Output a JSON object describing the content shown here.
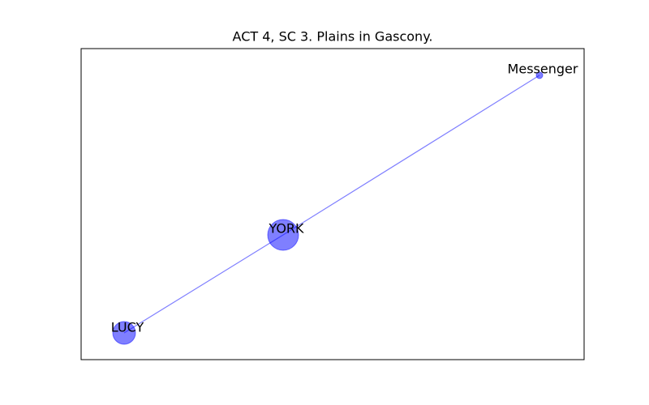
{
  "title": "ACT 4, SC 3. Plains in Gascony.",
  "nodes": [
    {
      "label": "Messenger"
    },
    {
      "label": "YORK"
    },
    {
      "label": "LUCY"
    }
  ]
}
